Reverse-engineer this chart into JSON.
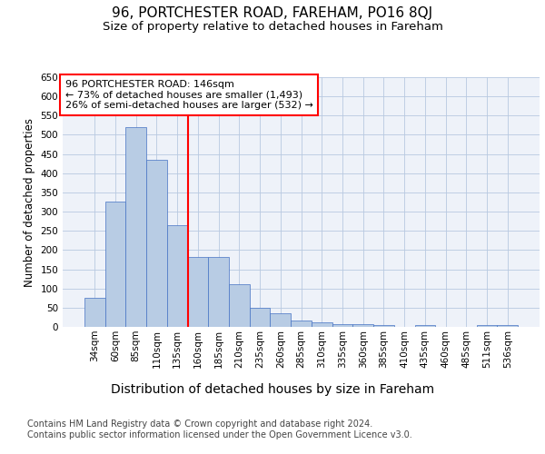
{
  "title_line1": "96, PORTCHESTER ROAD, FAREHAM, PO16 8QJ",
  "title_line2": "Size of property relative to detached houses in Fareham",
  "xlabel": "Distribution of detached houses by size in Fareham",
  "ylabel": "Number of detached properties",
  "footnote": "Contains HM Land Registry data © Crown copyright and database right 2024.\nContains public sector information licensed under the Open Government Licence v3.0.",
  "categories": [
    "34sqm",
    "60sqm",
    "85sqm",
    "110sqm",
    "135sqm",
    "160sqm",
    "185sqm",
    "210sqm",
    "235sqm",
    "260sqm",
    "285sqm",
    "310sqm",
    "335sqm",
    "360sqm",
    "385sqm",
    "410sqm",
    "435sqm",
    "460sqm",
    "485sqm",
    "511sqm",
    "536sqm"
  ],
  "values": [
    75,
    325,
    520,
    435,
    265,
    183,
    183,
    112,
    50,
    35,
    16,
    13,
    8,
    6,
    5,
    0,
    5,
    0,
    0,
    5,
    5
  ],
  "bar_color": "#b8cce4",
  "bar_edge_color": "#4472c4",
  "bar_edge_width": 0.5,
  "annotation_text_line1": "96 PORTCHESTER ROAD: 146sqm",
  "annotation_text_line2": "← 73% of detached houses are smaller (1,493)",
  "annotation_text_line3": "26% of semi-detached houses are larger (532) →",
  "annotation_box_color": "white",
  "annotation_box_edge_color": "red",
  "vline_color": "red",
  "vline_x": 4.5,
  "ylim": [
    0,
    650
  ],
  "yticks": [
    0,
    50,
    100,
    150,
    200,
    250,
    300,
    350,
    400,
    450,
    500,
    550,
    600,
    650
  ],
  "grid_color": "#b8c9e0",
  "background_color": "#eef2f9",
  "fig_background": "#ffffff",
  "title1_fontsize": 11,
  "title2_fontsize": 9.5,
  "xlabel_fontsize": 10,
  "ylabel_fontsize": 8.5,
  "tick_fontsize": 7.5,
  "footnote_fontsize": 7,
  "annot_fontsize": 8
}
